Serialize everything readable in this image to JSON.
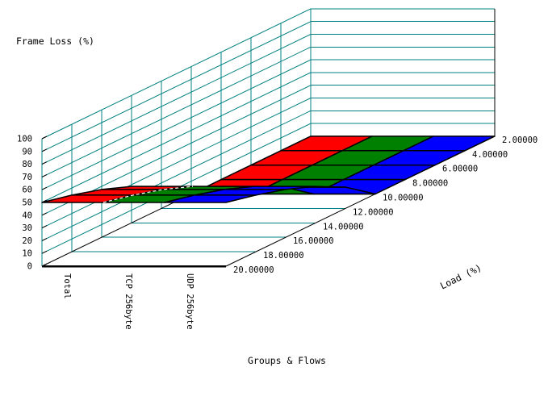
{
  "chart": {
    "title": "Frame Loss (%)",
    "z_axis": {
      "label": "Frame Loss (%)",
      "tick_labels": [
        "0",
        "10",
        "20",
        "30",
        "40",
        "50",
        "60",
        "70",
        "80",
        "90",
        "100"
      ]
    },
    "load_axis": {
      "label": "Load (%)",
      "tick_labels": [
        "2.00000",
        "4.00000",
        "6.00000",
        "8.00000",
        "10.00000",
        "12.00000",
        "14.00000",
        "16.00000",
        "18.00000",
        "20.00000"
      ]
    },
    "group_axis": {
      "label": "Groups & Flows",
      "tick_labels": [
        "Total",
        "TCP 256byte",
        "UDP 256byte"
      ]
    },
    "colors": {
      "grid": "#008080",
      "axis": "#000000",
      "ribbon_edge": "#000000",
      "fold_dash": "#ffffff",
      "background": "#ffffff"
    }
  },
  "chart_data": {
    "type": "area",
    "subtype": "3d-ribbon",
    "title": "Frame Loss (%)",
    "xlabel": "Load (%)",
    "ylabel": "Groups & Flows",
    "zlabel": "Frame Loss (%)",
    "x": [
      2,
      4,
      6,
      8,
      10,
      12,
      14,
      16,
      18,
      20
    ],
    "categories": [
      "Total",
      "TCP 256byte",
      "UDP 256byte"
    ],
    "series": [
      {
        "name": "Total",
        "color": "#ff0000",
        "values": [
          0,
          0,
          0,
          0,
          0,
          16.7,
          28.6,
          37.5,
          44.4,
          50.0
        ]
      },
      {
        "name": "TCP 256byte",
        "color": "#008000",
        "values": [
          0,
          0,
          0,
          0,
          0,
          16.7,
          28.6,
          37.5,
          44.4,
          50.0
        ]
      },
      {
        "name": "UDP 256byte",
        "color": "#0000ff",
        "values": [
          0,
          0,
          0,
          0,
          0,
          16.7,
          28.6,
          37.5,
          44.4,
          50.0
        ]
      }
    ],
    "zlim": [
      0,
      100
    ],
    "z_tick_step": 10,
    "grid": true,
    "legend": false
  }
}
